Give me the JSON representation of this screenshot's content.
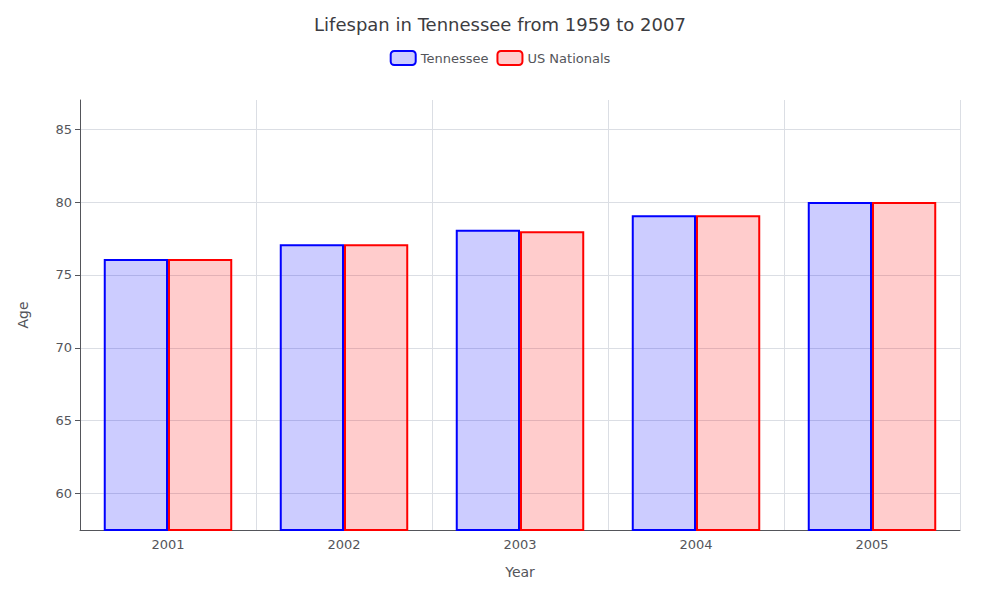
{
  "chart_data": {
    "type": "bar",
    "title": "Lifespan in Tennessee from 1959 to 2007",
    "xlabel": "Year",
    "ylabel": "Age",
    "categories": [
      "2001",
      "2002",
      "2003",
      "2004",
      "2005"
    ],
    "series": [
      {
        "name": "Tennessee",
        "color": "#0000ff",
        "values": [
          76.1,
          77.1,
          78.1,
          79.1,
          80.0
        ]
      },
      {
        "name": "US Nationals",
        "color": "#ff0000",
        "values": [
          76.1,
          77.1,
          78.0,
          79.1,
          80.0
        ]
      }
    ],
    "ylim": [
      57.5,
      87
    ],
    "yticks": [
      60,
      65,
      70,
      75,
      80,
      85
    ],
    "grid": true,
    "legend": "top"
  }
}
